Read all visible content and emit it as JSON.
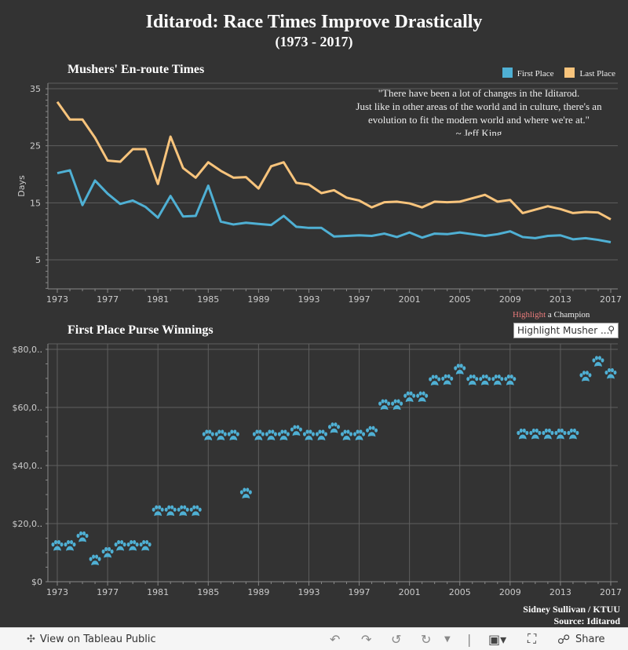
{
  "header": {
    "title": "Iditarod: Race Times Improve Drastically",
    "subtitle": "(1973 - 2017)"
  },
  "quote": {
    "lines": [
      "\"There have been a lot of changes in the Iditarod.",
      "Just like in other areas of the world and in culture, there's an",
      "evolution to fit the modern world and where we're at.\"",
      "~ Jeff King"
    ]
  },
  "highlight": {
    "word": "Highlight",
    "rest": " a Champion",
    "placeholder": "Highlight Musher ..."
  },
  "credit": {
    "line1": "Sidney Sullivan / KTUU",
    "line2": "Source: Iditarod"
  },
  "toolbar": {
    "view_label": "View on Tableau Public",
    "share_label": "Share"
  },
  "colors": {
    "first": "#4fb0d4",
    "last": "#f8c47c",
    "background": "#333333",
    "grid": "#5f5f5f"
  },
  "chart_data": [
    {
      "type": "line",
      "title": "Mushers' En-route Times",
      "ylabel": "Days",
      "ylim": [
        0,
        36
      ],
      "yticks": [
        5,
        15,
        25,
        35
      ],
      "xticks": [
        1973,
        1977,
        1981,
        1985,
        1989,
        1993,
        1997,
        2001,
        2005,
        2009,
        2013,
        2017
      ],
      "legend": "top-right",
      "x": [
        1973,
        1974,
        1975,
        1976,
        1977,
        1978,
        1979,
        1980,
        1981,
        1982,
        1983,
        1984,
        1985,
        1986,
        1987,
        1988,
        1989,
        1990,
        1991,
        1992,
        1993,
        1994,
        1995,
        1996,
        1997,
        1998,
        1999,
        2000,
        2001,
        2002,
        2003,
        2004,
        2005,
        2006,
        2007,
        2008,
        2009,
        2010,
        2011,
        2012,
        2013,
        2014,
        2015,
        2016,
        2017
      ],
      "series": [
        {
          "name": "First Place",
          "color": "#4fb0d4",
          "values": [
            20.2,
            20.7,
            14.6,
            18.9,
            16.6,
            14.8,
            15.4,
            14.3,
            12.4,
            16.2,
            12.6,
            12.7,
            18.0,
            11.7,
            11.2,
            11.5,
            11.3,
            11.1,
            12.7,
            10.8,
            10.6,
            10.6,
            9.1,
            9.2,
            9.3,
            9.2,
            9.6,
            9.0,
            9.8,
            8.9,
            9.6,
            9.5,
            9.8,
            9.5,
            9.2,
            9.5,
            10.0,
            9.0,
            8.8,
            9.2,
            9.3,
            8.6,
            8.8,
            8.5,
            8.1
          ]
        },
        {
          "name": "Last Place",
          "color": "#f8c47c",
          "values": [
            32.7,
            29.6,
            29.6,
            26.4,
            22.4,
            22.2,
            24.4,
            24.4,
            18.3,
            26.6,
            21.1,
            19.4,
            22.1,
            20.6,
            19.4,
            19.5,
            17.5,
            21.4,
            22.1,
            18.5,
            18.2,
            16.7,
            17.2,
            15.9,
            15.4,
            14.2,
            15.1,
            15.2,
            14.9,
            14.2,
            15.2,
            15.1,
            15.2,
            15.8,
            16.4,
            15.2,
            15.5,
            13.2,
            13.8,
            14.4,
            13.9,
            13.2,
            13.4,
            13.3,
            12.1
          ]
        }
      ]
    },
    {
      "type": "scatter",
      "title": "First Place Purse Winnings",
      "marker": "paw-icon",
      "ylim": [
        0,
        80000
      ],
      "yticks": [
        0,
        20000,
        40000,
        60000,
        80000
      ],
      "ytick_labels": [
        "$0",
        "$20,0..",
        "$40,0..",
        "$60,0..",
        "$80,0.."
      ],
      "xticks": [
        1973,
        1977,
        1981,
        1985,
        1989,
        1993,
        1997,
        2001,
        2005,
        2009,
        2013,
        2017
      ],
      "x": [
        1973,
        1974,
        1975,
        1976,
        1977,
        1978,
        1979,
        1980,
        1981,
        1982,
        1983,
        1984,
        1985,
        1986,
        1987,
        1988,
        1989,
        1990,
        1991,
        1992,
        1993,
        1994,
        1995,
        1996,
        1997,
        1998,
        1999,
        2000,
        2001,
        2002,
        2003,
        2004,
        2005,
        2006,
        2007,
        2008,
        2009,
        2010,
        2011,
        2012,
        2013,
        2014,
        2015,
        2016,
        2017
      ],
      "values": [
        12000,
        12000,
        15000,
        7000,
        9600,
        12000,
        12000,
        12000,
        24000,
        24000,
        24000,
        24000,
        50000,
        50000,
        50000,
        30000,
        50000,
        50000,
        50000,
        51600,
        50000,
        50000,
        52500,
        50000,
        50000,
        51300,
        60500,
        60500,
        63200,
        63200,
        68900,
        69100,
        72700,
        69000,
        69000,
        69000,
        69000,
        50400,
        50400,
        50400,
        50400,
        50400,
        70300,
        75400,
        71200
      ]
    }
  ]
}
